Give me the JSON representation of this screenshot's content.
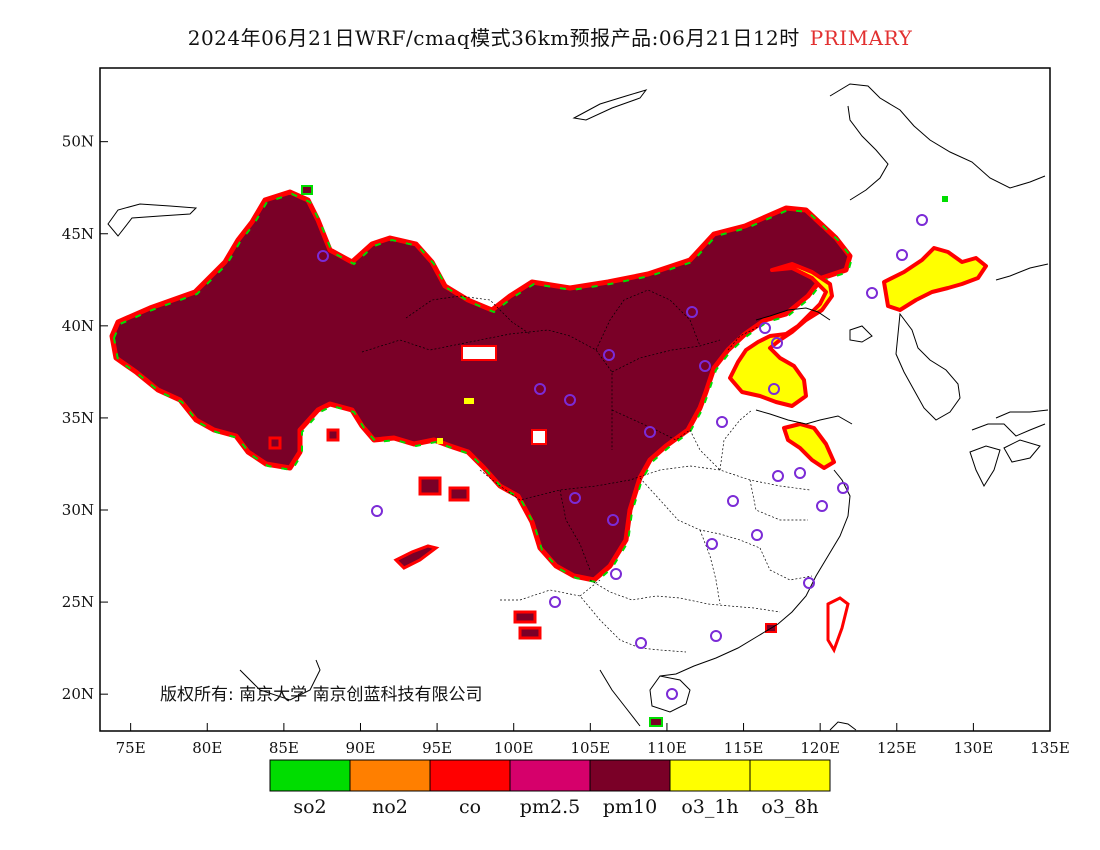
{
  "title": {
    "main": "2024年06月21日WRF/cmaq模式36km预报产品:06月21日12时",
    "tag": "PRIMARY"
  },
  "map": {
    "lon_range": [
      73,
      135
    ],
    "lat_range": [
      18,
      54
    ],
    "lon_ticks": [
      "75E",
      "80E",
      "85E",
      "90E",
      "95E",
      "100E",
      "105E",
      "110E",
      "115E",
      "120E",
      "125E",
      "130E",
      "135E"
    ],
    "lat_ticks": [
      "20N",
      "25N",
      "30N",
      "35N",
      "40N",
      "45N",
      "50N"
    ],
    "copyright": "版权所有: 南京大学 南京创蓝科技有限公司"
  },
  "legend": {
    "items": [
      {
        "label": "so2",
        "color": "#00dd00"
      },
      {
        "label": "no2",
        "color": "#ff7f00"
      },
      {
        "label": "co",
        "color": "#ff0000"
      },
      {
        "label": "pm2.5",
        "color": "#d6006b"
      },
      {
        "label": "pm10",
        "color": "#7a0027"
      },
      {
        "label": "o3_1h",
        "color": "#ffff00"
      },
      {
        "label": "o3_8h",
        "color": "#ffff00"
      }
    ]
  },
  "colors": {
    "pm10": "#7a0027",
    "o3": "#ffff00",
    "edge_red": "#ff0000",
    "edge_green": "#00dd00",
    "station": "#7b2bd6",
    "coast": "#000000"
  }
}
